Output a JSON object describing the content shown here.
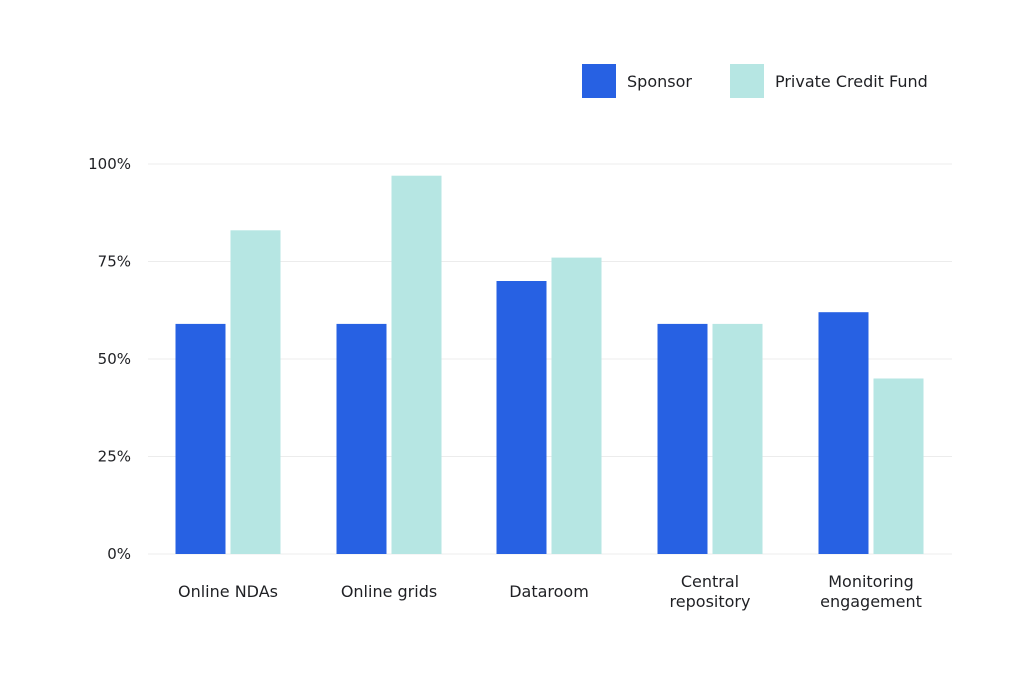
{
  "chart_data": {
    "type": "bar",
    "categories": [
      [
        "Online NDAs"
      ],
      [
        "Online grids"
      ],
      [
        "Dataroom"
      ],
      [
        "Central",
        "repository"
      ],
      [
        "Monitoring",
        "engagement"
      ]
    ],
    "series": [
      {
        "name": "Sponsor",
        "color": "#2761e3",
        "values": [
          59,
          59,
          70,
          59,
          62
        ]
      },
      {
        "name": "Private Credit Fund",
        "color": "#b6e6e3",
        "values": [
          83,
          97,
          76,
          59,
          45
        ]
      }
    ],
    "yticks": [
      "0%",
      "25%",
      "50%",
      "75%",
      "100%"
    ],
    "ylim": [
      0,
      100
    ],
    "grid": true,
    "legend_position": "top-right"
  }
}
